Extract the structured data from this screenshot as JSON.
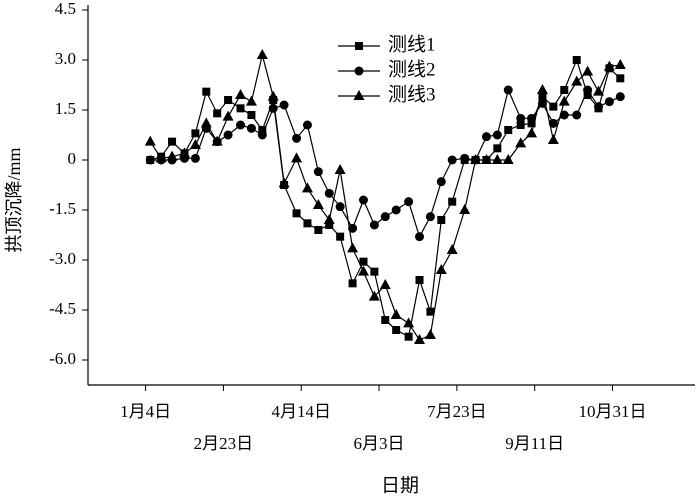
{
  "chart_data": {
    "type": "line",
    "xlabel": "日期",
    "ylabel": "拱顶沉降/mm",
    "x": [
      7,
      14,
      21,
      29,
      36,
      43,
      50,
      57,
      65,
      72,
      79,
      86,
      93,
      101,
      108,
      115,
      122,
      129,
      137,
      144,
      151,
      158,
      165,
      173,
      180,
      187,
      194,
      201,
      209,
      216,
      223,
      230,
      237,
      245,
      252,
      259,
      266,
      273,
      281,
      288,
      295,
      302,
      309
    ],
    "series": [
      {
        "name": "测线1",
        "color": "#000000",
        "marker": "square",
        "values": [
          0,
          0.1,
          0.55,
          0.2,
          0.8,
          2.05,
          1.4,
          1.8,
          1.55,
          1.35,
          0.9,
          1.8,
          -0.75,
          -1.6,
          -1.9,
          -2.1,
          -1.95,
          -2.3,
          -3.7,
          -3.05,
          -3.35,
          -4.8,
          -5.1,
          -5.3,
          -3.6,
          -4.55,
          -1.8,
          -1.25,
          0,
          0,
          0,
          0.35,
          0.9,
          1.05,
          1.1,
          1.9,
          1.6,
          2.1,
          3.0,
          1.95,
          1.55,
          2.75,
          2.45
        ]
      },
      {
        "name": "测线2",
        "color": "#000000",
        "marker": "circle",
        "values": [
          0,
          0,
          0,
          0.05,
          0.05,
          0.95,
          0.55,
          0.75,
          1.05,
          0.95,
          0.75,
          1.55,
          1.65,
          0.65,
          1.05,
          -0.35,
          -1.0,
          -1.4,
          -2.05,
          -1.2,
          -1.95,
          -1.7,
          -1.5,
          -1.25,
          -2.3,
          -1.7,
          -0.65,
          0,
          0.05,
          0,
          0.7,
          0.75,
          2.1,
          1.25,
          1.25,
          1.7,
          1.1,
          1.35,
          1.35,
          2.1,
          1.6,
          1.75,
          1.9
        ]
      },
      {
        "name": "测线3",
        "color": "#000000",
        "marker": "triangle",
        "values": [
          0.55,
          0.05,
          0.1,
          0.2,
          0.45,
          1.1,
          0.55,
          1.3,
          1.95,
          1.75,
          3.15,
          1.9,
          -0.7,
          0.05,
          -0.85,
          -1.35,
          -1.8,
          -0.3,
          -2.65,
          -3.35,
          -4.1,
          -3.75,
          -4.65,
          -4.9,
          -5.4,
          -5.25,
          -3.3,
          -2.7,
          -1.5,
          0,
          0,
          0,
          0,
          0.5,
          0.8,
          2.1,
          0.6,
          1.75,
          2.35,
          2.65,
          2.05,
          2.8,
          2.85
        ]
      }
    ],
    "xlim": [
      -33,
      357
    ],
    "xticks": [
      {
        "value": 4,
        "label": "1月4日"
      },
      {
        "value": 54,
        "label": "2月23日"
      },
      {
        "value": 104,
        "label": "4月14日"
      },
      {
        "value": 154,
        "label": "6月3日"
      },
      {
        "value": 204,
        "label": "7月23日"
      },
      {
        "value": 254,
        "label": "9月11日"
      },
      {
        "value": 304,
        "label": "10月31日"
      }
    ],
    "ylim": [
      -6.75,
      4.5
    ],
    "yticks": [
      {
        "value": -6,
        "label": "-6.0"
      },
      -4.5,
      {
        "value": -3,
        "label": "-3.0"
      },
      -1.5,
      0,
      1.5,
      {
        "value": 3,
        "label": "3.0"
      },
      4.5
    ],
    "legend": "top-center"
  }
}
